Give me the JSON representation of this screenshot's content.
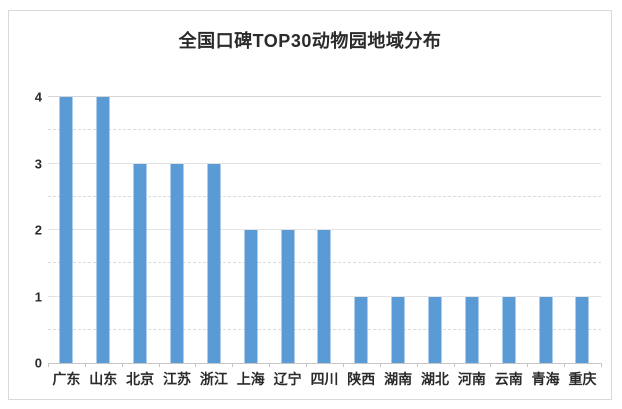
{
  "chart_data": {
    "type": "bar",
    "title": "全国口碑TOP30动物园地域分布",
    "categories": [
      "广东",
      "山东",
      "北京",
      "江苏",
      "浙江",
      "上海",
      "辽宁",
      "四川",
      "陕西",
      "湖南",
      "湖北",
      "河南",
      "云南",
      "青海",
      "重庆"
    ],
    "values": [
      4,
      4,
      3,
      3,
      3,
      2,
      2,
      2,
      1,
      1,
      1,
      1,
      1,
      1,
      1
    ],
    "xlabel": "",
    "ylabel": "",
    "ylim": [
      0,
      4
    ],
    "y_ticks": [
      0,
      1,
      2,
      3,
      4
    ],
    "gridlines": "horizontal every 0.5, light gray dashed",
    "legend": "none",
    "bar_color": "#5B9BD5"
  },
  "colors": {
    "bar": "#5B9BD5",
    "frame_border": "#d9d9d9",
    "gridline": "#dcdcdc",
    "axis_line": "#c6c6c6",
    "text": "#2b2b2b",
    "background": "#ffffff"
  }
}
